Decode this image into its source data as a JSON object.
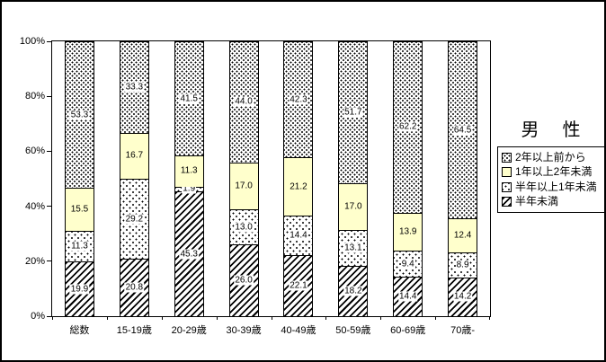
{
  "chart_data": {
    "type": "bar",
    "subtype": "100-percent-stacked-column",
    "title": "男　性",
    "categories": [
      "総数",
      "15-19歳",
      "20-29歳",
      "30-39歳",
      "40-49歳",
      "50-59歳",
      "60-69歳",
      "70歳-"
    ],
    "series": [
      {
        "name": "半年未満",
        "pattern": "hatch",
        "label_style": "white-box",
        "values": [
          19.9,
          20.8,
          45.3,
          26.0,
          22.1,
          18.2,
          14.4,
          14.2
        ]
      },
      {
        "name": "半年以上1年未満",
        "pattern": "dots-sparse",
        "label_style": "white-box",
        "values": [
          11.3,
          29.2,
          1.9,
          13.0,
          14.4,
          13.1,
          9.4,
          8.9
        ]
      },
      {
        "name": "1年以上2年未満",
        "pattern": "solid-yellow",
        "label_style": "plain",
        "values": [
          15.5,
          16.7,
          11.3,
          17.0,
          21.2,
          17.0,
          13.9,
          12.4
        ]
      },
      {
        "name": "2年以上前から",
        "pattern": "dots-dense",
        "label_style": "white-box",
        "values": [
          53.3,
          33.3,
          41.5,
          44.0,
          42.3,
          51.7,
          62.2,
          64.5
        ]
      }
    ],
    "series_order": "bottom-to-top",
    "y_axis": {
      "min": 0,
      "max": 100,
      "ticks": [
        "0%",
        "20%",
        "40%",
        "60%",
        "80%",
        "100%"
      ],
      "gridlines": false
    },
    "legend": {
      "position": "right",
      "items": [
        {
          "label": "2年以上前から",
          "pattern": "dots-dense"
        },
        {
          "label": "1年以上2年未満",
          "pattern": "solid-yellow"
        },
        {
          "label": "半年以上1年未満",
          "pattern": "dots-sparse"
        },
        {
          "label": "半年未満",
          "pattern": "hatch"
        }
      ]
    },
    "colors": {
      "segment_yellow": "#FFFFCC",
      "pattern_ink": "#000000",
      "background": "#FFFFFF",
      "border": "#000000"
    }
  }
}
